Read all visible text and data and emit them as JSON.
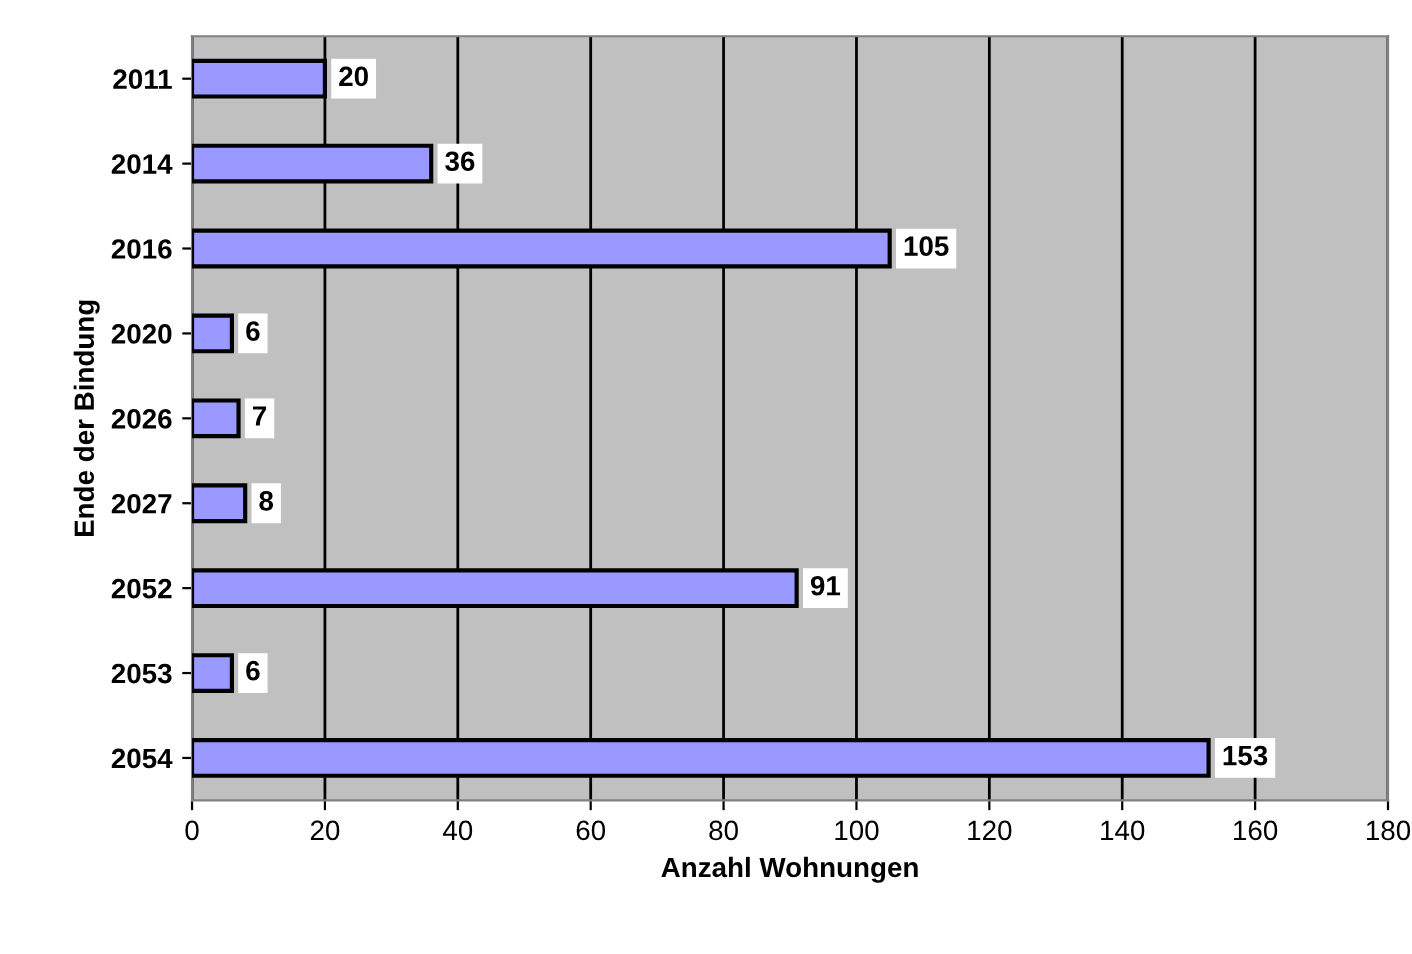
{
  "chart_data": {
    "type": "bar",
    "orientation": "horizontal",
    "xlabel": "Anzahl Wohnungen",
    "ylabel": "Ende der Bindung",
    "categories": [
      "2011",
      "2014",
      "2016",
      "2020",
      "2026",
      "2027",
      "2052",
      "2053",
      "2054"
    ],
    "values": [
      20,
      36,
      105,
      6,
      7,
      8,
      91,
      6,
      153
    ],
    "color": "#9999ff",
    "xlim": [
      0,
      180
    ],
    "xticks": [
      0,
      20,
      40,
      60,
      80,
      100,
      120,
      140,
      160,
      180
    ],
    "grid": "x",
    "data_labels": true
  }
}
